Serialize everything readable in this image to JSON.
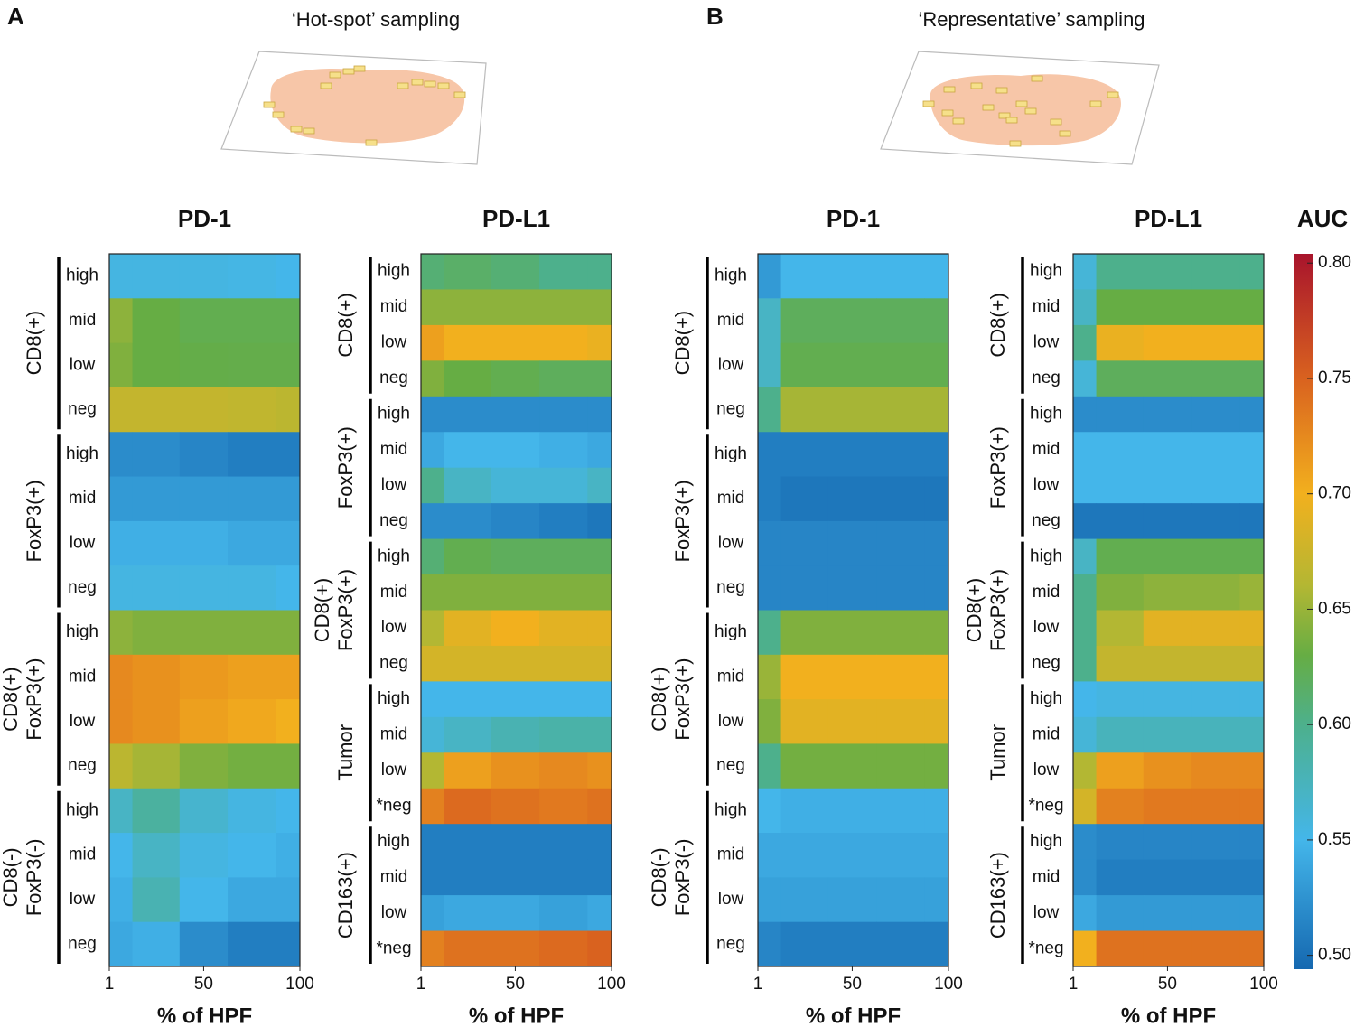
{
  "panels": [
    {
      "letter": "A",
      "title": "‘Hot-spot’ sampling"
    },
    {
      "letter": "B",
      "title": "‘Representative’ sampling"
    }
  ],
  "chart_data": [
    {
      "type": "heatmap",
      "title": "PD-1",
      "xlabel": "% of HPF",
      "x": [
        1,
        25,
        50,
        75,
        100
      ],
      "xlim": [
        1,
        100
      ],
      "xticks": [
        1,
        50,
        100
      ],
      "groups": [
        {
          "label": [
            "CD8(+)"
          ],
          "rows": [
            {
              "name": "high",
              "values": [
                0.555,
                0.555,
                0.555,
                0.553,
                0.55
              ]
            },
            {
              "name": "mid",
              "values": [
                0.645,
                0.63,
                0.625,
                0.625,
                0.625
              ]
            },
            {
              "name": "low",
              "values": [
                0.64,
                0.63,
                0.628,
                0.627,
                0.627
              ]
            },
            {
              "name": "neg",
              "values": [
                0.67,
                0.67,
                0.67,
                0.668,
                0.665
              ]
            }
          ]
        },
        {
          "label": [
            "FoxP3(+)"
          ],
          "rows": [
            {
              "name": "high",
              "values": [
                0.52,
                0.52,
                0.515,
                0.51,
                0.51
              ]
            },
            {
              "name": "mid",
              "values": [
                0.53,
                0.53,
                0.53,
                0.53,
                0.53
              ]
            },
            {
              "name": "low",
              "values": [
                0.545,
                0.545,
                0.545,
                0.54,
                0.54
              ]
            },
            {
              "name": "neg",
              "values": [
                0.555,
                0.555,
                0.555,
                0.555,
                0.55
              ]
            }
          ]
        },
        {
          "label": [
            "CD8(+)",
            "FoxP3(+)"
          ],
          "rows": [
            {
              "name": "high",
              "values": [
                0.645,
                0.64,
                0.64,
                0.64,
                0.64
              ]
            },
            {
              "name": "mid",
              "values": [
                0.725,
                0.72,
                0.715,
                0.71,
                0.71
              ]
            },
            {
              "name": "low",
              "values": [
                0.725,
                0.72,
                0.71,
                0.705,
                0.7
              ]
            },
            {
              "name": "neg",
              "values": [
                0.665,
                0.655,
                0.64,
                0.635,
                0.635
              ]
            }
          ]
        },
        {
          "label": [
            "CD8(-)",
            "FoxP3(-)"
          ],
          "rows": [
            {
              "name": "high",
              "values": [
                0.57,
                0.59,
                0.565,
                0.555,
                0.55
              ]
            },
            {
              "name": "mid",
              "values": [
                0.55,
                0.57,
                0.555,
                0.55,
                0.545
              ]
            },
            {
              "name": "low",
              "values": [
                0.545,
                0.58,
                0.55,
                0.54,
                0.54
              ]
            },
            {
              "name": "neg",
              "values": [
                0.54,
                0.545,
                0.52,
                0.51,
                0.51
              ]
            }
          ]
        }
      ]
    },
    {
      "type": "heatmap",
      "title": "PD-L1",
      "xlabel": "% of HPF",
      "x": [
        1,
        25,
        50,
        75,
        100
      ],
      "xlim": [
        1,
        100
      ],
      "xticks": [
        1,
        50,
        100
      ],
      "groups": [
        {
          "label": [
            "CD8(+)"
          ],
          "rows": [
            {
              "name": "high",
              "values": [
                0.61,
                0.615,
                0.61,
                0.6,
                0.6
              ]
            },
            {
              "name": "mid",
              "values": [
                0.645,
                0.645,
                0.645,
                0.645,
                0.645
              ]
            },
            {
              "name": "low",
              "values": [
                0.71,
                0.7,
                0.7,
                0.7,
                0.695
              ]
            },
            {
              "name": "neg",
              "values": [
                0.64,
                0.63,
                0.625,
                0.62,
                0.62
              ]
            }
          ]
        },
        {
          "label": [
            "FoxP3(+)"
          ],
          "rows": [
            {
              "name": "high",
              "values": [
                0.52,
                0.52,
                0.52,
                0.52,
                0.52
              ]
            },
            {
              "name": "mid",
              "values": [
                0.54,
                0.55,
                0.55,
                0.545,
                0.54
              ]
            },
            {
              "name": "low",
              "values": [
                0.6,
                0.57,
                0.56,
                0.56,
                0.57
              ]
            },
            {
              "name": "neg",
              "values": [
                0.52,
                0.52,
                0.515,
                0.51,
                0.505
              ]
            }
          ]
        },
        {
          "label": [
            "CD8(+)",
            "FoxP3(+)"
          ],
          "rows": [
            {
              "name": "high",
              "values": [
                0.61,
                0.625,
                0.62,
                0.62,
                0.62
              ]
            },
            {
              "name": "mid",
              "values": [
                0.64,
                0.64,
                0.64,
                0.64,
                0.64
              ]
            },
            {
              "name": "low",
              "values": [
                0.66,
                0.69,
                0.7,
                0.69,
                0.69
              ]
            },
            {
              "name": "neg",
              "values": [
                0.68,
                0.68,
                0.68,
                0.68,
                0.68
              ]
            }
          ]
        },
        {
          "label": [
            "Tumor"
          ],
          "rows": [
            {
              "name": "high",
              "values": [
                0.55,
                0.55,
                0.55,
                0.55,
                0.55
              ]
            },
            {
              "name": "mid",
              "values": [
                0.56,
                0.57,
                0.58,
                0.585,
                0.585
              ]
            },
            {
              "name": "low",
              "values": [
                0.66,
                0.71,
                0.72,
                0.725,
                0.72
              ]
            },
            {
              "name": "*neg",
              "values": [
                0.73,
                0.745,
                0.74,
                0.735,
                0.74
              ]
            }
          ]
        },
        {
          "label": [
            "CD163(+)"
          ],
          "rows": [
            {
              "name": "high",
              "values": [
                0.51,
                0.51,
                0.51,
                0.51,
                0.51
              ]
            },
            {
              "name": "mid",
              "values": [
                0.51,
                0.51,
                0.51,
                0.51,
                0.51
              ]
            },
            {
              "name": "low",
              "values": [
                0.535,
                0.54,
                0.54,
                0.535,
                0.54
              ]
            },
            {
              "name": "*neg",
              "values": [
                0.73,
                0.74,
                0.74,
                0.745,
                0.75
              ]
            }
          ]
        }
      ]
    },
    {
      "type": "heatmap",
      "title": "PD-1",
      "xlabel": "% of HPF",
      "x": [
        1,
        25,
        50,
        75,
        100
      ],
      "xlim": [
        1,
        100
      ],
      "xticks": [
        1,
        50,
        100
      ],
      "groups": [
        {
          "label": [
            "CD8(+)"
          ],
          "rows": [
            {
              "name": "high",
              "values": [
                0.53,
                0.55,
                0.55,
                0.55,
                0.55
              ]
            },
            {
              "name": "mid",
              "values": [
                0.57,
                0.62,
                0.62,
                0.62,
                0.62
              ]
            },
            {
              "name": "low",
              "values": [
                0.57,
                0.625,
                0.625,
                0.625,
                0.625
              ]
            },
            {
              "name": "neg",
              "values": [
                0.6,
                0.655,
                0.655,
                0.655,
                0.655
              ]
            }
          ]
        },
        {
          "label": [
            "FoxP3(+)"
          ],
          "rows": [
            {
              "name": "high",
              "values": [
                0.51,
                0.51,
                0.51,
                0.51,
                0.51
              ]
            },
            {
              "name": "mid",
              "values": [
                0.51,
                0.505,
                0.505,
                0.505,
                0.505
              ]
            },
            {
              "name": "low",
              "values": [
                0.515,
                0.515,
                0.515,
                0.515,
                0.515
              ]
            },
            {
              "name": "neg",
              "values": [
                0.515,
                0.515,
                0.515,
                0.515,
                0.515
              ]
            }
          ]
        },
        {
          "label": [
            "CD8(+)",
            "FoxP3(+)"
          ],
          "rows": [
            {
              "name": "high",
              "values": [
                0.6,
                0.64,
                0.64,
                0.64,
                0.64
              ]
            },
            {
              "name": "mid",
              "values": [
                0.65,
                0.7,
                0.7,
                0.7,
                0.7
              ]
            },
            {
              "name": "low",
              "values": [
                0.64,
                0.69,
                0.69,
                0.69,
                0.69
              ]
            },
            {
              "name": "neg",
              "values": [
                0.6,
                0.635,
                0.635,
                0.635,
                0.635
              ]
            }
          ]
        },
        {
          "label": [
            "CD8(-)",
            "FoxP3(-)"
          ],
          "rows": [
            {
              "name": "high",
              "values": [
                0.55,
                0.545,
                0.545,
                0.545,
                0.545
              ]
            },
            {
              "name": "mid",
              "values": [
                0.54,
                0.54,
                0.54,
                0.54,
                0.54
              ]
            },
            {
              "name": "low",
              "values": [
                0.535,
                0.535,
                0.535,
                0.535,
                0.535
              ]
            },
            {
              "name": "neg",
              "values": [
                0.515,
                0.51,
                0.51,
                0.51,
                0.51
              ]
            }
          ]
        }
      ]
    },
    {
      "type": "heatmap",
      "title": "PD-L1",
      "xlabel": "% of HPF",
      "x": [
        1,
        25,
        50,
        75,
        100
      ],
      "xlim": [
        1,
        100
      ],
      "xticks": [
        1,
        50,
        100
      ],
      "groups": [
        {
          "label": [
            "CD8(+)"
          ],
          "rows": [
            {
              "name": "high",
              "values": [
                0.56,
                0.6,
                0.6,
                0.6,
                0.6
              ]
            },
            {
              "name": "mid",
              "values": [
                0.57,
                0.63,
                0.63,
                0.63,
                0.63
              ]
            },
            {
              "name": "low",
              "values": [
                0.6,
                0.695,
                0.7,
                0.7,
                0.7
              ]
            },
            {
              "name": "neg",
              "values": [
                0.56,
                0.62,
                0.62,
                0.62,
                0.62
              ]
            }
          ]
        },
        {
          "label": [
            "FoxP3(+)"
          ],
          "rows": [
            {
              "name": "high",
              "values": [
                0.52,
                0.52,
                0.52,
                0.52,
                0.52
              ]
            },
            {
              "name": "mid",
              "values": [
                0.55,
                0.55,
                0.55,
                0.55,
                0.55
              ]
            },
            {
              "name": "low",
              "values": [
                0.55,
                0.55,
                0.55,
                0.55,
                0.55
              ]
            },
            {
              "name": "neg",
              "values": [
                0.505,
                0.505,
                0.505,
                0.505,
                0.505
              ]
            }
          ]
        },
        {
          "label": [
            "CD8(+)",
            "FoxP3(+)"
          ],
          "rows": [
            {
              "name": "high",
              "values": [
                0.57,
                0.625,
                0.625,
                0.625,
                0.625
              ]
            },
            {
              "name": "mid",
              "values": [
                0.6,
                0.64,
                0.645,
                0.645,
                0.65
              ]
            },
            {
              "name": "low",
              "values": [
                0.6,
                0.66,
                0.69,
                0.69,
                0.69
              ]
            },
            {
              "name": "neg",
              "values": [
                0.6,
                0.67,
                0.67,
                0.67,
                0.67
              ]
            }
          ]
        },
        {
          "label": [
            "Tumor"
          ],
          "rows": [
            {
              "name": "high",
              "values": [
                0.55,
                0.555,
                0.555,
                0.555,
                0.555
              ]
            },
            {
              "name": "mid",
              "values": [
                0.56,
                0.575,
                0.575,
                0.575,
                0.575
              ]
            },
            {
              "name": "low",
              "values": [
                0.66,
                0.71,
                0.72,
                0.725,
                0.725
              ]
            },
            {
              "name": "*neg",
              "values": [
                0.68,
                0.73,
                0.735,
                0.735,
                0.735
              ]
            }
          ]
        },
        {
          "label": [
            "CD163(+)"
          ],
          "rows": [
            {
              "name": "high",
              "values": [
                0.52,
                0.515,
                0.515,
                0.515,
                0.515
              ]
            },
            {
              "name": "mid",
              "values": [
                0.52,
                0.51,
                0.51,
                0.51,
                0.51
              ]
            },
            {
              "name": "low",
              "values": [
                0.54,
                0.53,
                0.53,
                0.53,
                0.53
              ]
            },
            {
              "name": "*neg",
              "values": [
                0.7,
                0.74,
                0.74,
                0.74,
                0.74
              ]
            }
          ]
        }
      ]
    },
    {
      "type": "colorbar",
      "title": "AUC",
      "clim": [
        0.494,
        0.804
      ],
      "cticks": [
        {
          "value": 0.8,
          "label": "0.80"
        },
        {
          "value": 0.75,
          "label": "0.75"
        },
        {
          "value": 0.7,
          "label": "0.70"
        },
        {
          "value": 0.65,
          "label": "0.65"
        },
        {
          "value": 0.6,
          "label": "0.60"
        },
        {
          "value": 0.55,
          "label": "0.55"
        },
        {
          "value": 0.5,
          "label": "0.50"
        }
      ],
      "colorscale": [
        [
          0.494,
          "#1568b0"
        ],
        [
          0.55,
          "#44b6ea"
        ],
        [
          0.6,
          "#4db08c"
        ],
        [
          0.63,
          "#66ad44"
        ],
        [
          0.66,
          "#b3b733"
        ],
        [
          0.7,
          "#f2b01e"
        ],
        [
          0.75,
          "#d9621f"
        ],
        [
          0.804,
          "#a8142c"
        ]
      ]
    }
  ]
}
